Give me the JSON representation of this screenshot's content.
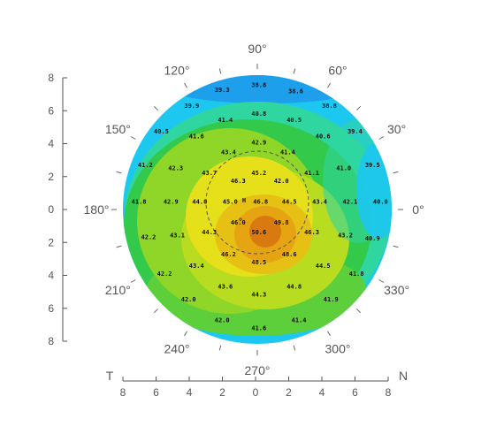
{
  "chart_data": {
    "type": "heatmap",
    "title": "",
    "colorscale": [
      "#1e6ee8",
      "#1cc7f0",
      "#2fd6a0",
      "#33c94a",
      "#8fd628",
      "#e6e01a",
      "#e6a412",
      "#d97a10"
    ],
    "x_range": [
      -8,
      8
    ],
    "y_range": [
      -8,
      8
    ],
    "x_ticks": [
      "8",
      "6",
      "4",
      "2",
      "0",
      "2",
      "4",
      "6",
      "8"
    ],
    "y_ticks": [
      "8",
      "6",
      "4",
      "2",
      "0",
      "2",
      "4",
      "6",
      "8"
    ],
    "side_labels": {
      "left": "T",
      "right": "N"
    },
    "angle_labels": [
      {
        "deg": 90,
        "text": "90°"
      },
      {
        "deg": 60,
        "text": "60°"
      },
      {
        "deg": 30,
        "text": "30°"
      },
      {
        "deg": 0,
        "text": "0°"
      },
      {
        "deg": 330,
        "text": "330°"
      },
      {
        "deg": 300,
        "text": "300°"
      },
      {
        "deg": 270,
        "text": "270°"
      },
      {
        "deg": 240,
        "text": "240°"
      },
      {
        "deg": 210,
        "text": "210°"
      },
      {
        "deg": 180,
        "text": "180°"
      },
      {
        "deg": 150,
        "text": "150°"
      },
      {
        "deg": 120,
        "text": "120°"
      }
    ],
    "points": [
      {
        "x": 0.1,
        "y": 7.8,
        "v": "38.8"
      },
      {
        "x": -2.2,
        "y": 7.5,
        "v": "39.3"
      },
      {
        "x": 2.4,
        "y": 7.4,
        "v": "38.6"
      },
      {
        "x": -4.1,
        "y": 6.5,
        "v": "39.9"
      },
      {
        "x": 4.5,
        "y": 6.5,
        "v": "38.8"
      },
      {
        "x": -2.0,
        "y": 5.6,
        "v": "41.4"
      },
      {
        "x": 0.1,
        "y": 6.0,
        "v": "40.8"
      },
      {
        "x": 2.3,
        "y": 5.6,
        "v": "40.5"
      },
      {
        "x": -6.0,
        "y": 4.9,
        "v": "40.5"
      },
      {
        "x": -3.8,
        "y": 4.6,
        "v": "41.6"
      },
      {
        "x": 4.1,
        "y": 4.6,
        "v": "40.6"
      },
      {
        "x": 6.1,
        "y": 4.9,
        "v": "39.4"
      },
      {
        "x": 0.1,
        "y": 4.2,
        "v": "42.9"
      },
      {
        "x": -1.8,
        "y": 3.6,
        "v": "43.4"
      },
      {
        "x": 1.9,
        "y": 3.6,
        "v": "41.4"
      },
      {
        "x": -7.0,
        "y": 2.8,
        "v": "41.2"
      },
      {
        "x": -5.1,
        "y": 2.6,
        "v": "42.3"
      },
      {
        "x": 7.2,
        "y": 2.8,
        "v": "39.5"
      },
      {
        "x": 5.4,
        "y": 2.6,
        "v": "41.0"
      },
      {
        "x": -3.0,
        "y": 2.3,
        "v": "43.7"
      },
      {
        "x": 0.1,
        "y": 2.3,
        "v": "45.2"
      },
      {
        "x": 3.4,
        "y": 2.3,
        "v": "41.1"
      },
      {
        "x": -1.2,
        "y": 1.8,
        "v": "46.3"
      },
      {
        "x": 1.5,
        "y": 1.8,
        "v": "42.0"
      },
      {
        "x": -7.4,
        "y": 0.5,
        "v": "41.8"
      },
      {
        "x": -5.4,
        "y": 0.5,
        "v": "42.9"
      },
      {
        "x": -3.6,
        "y": 0.5,
        "v": "44.0"
      },
      {
        "x": -1.7,
        "y": 0.5,
        "v": "45.0"
      },
      {
        "x": 0.2,
        "y": 0.5,
        "v": "46.8"
      },
      {
        "x": 2.0,
        "y": 0.5,
        "v": "44.5"
      },
      {
        "x": 3.9,
        "y": 0.5,
        "v": "43.4"
      },
      {
        "x": 5.8,
        "y": 0.5,
        "v": "42.1"
      },
      {
        "x": 7.7,
        "y": 0.5,
        "v": "40.0"
      },
      {
        "x": -1.2,
        "y": -0.8,
        "v": "46.0"
      },
      {
        "x": 1.5,
        "y": -0.8,
        "v": "49.8"
      },
      {
        "x": 0.1,
        "y": -1.4,
        "v": "50.6"
      },
      {
        "x": -3.0,
        "y": -1.4,
        "v": "44.3"
      },
      {
        "x": 3.4,
        "y": -1.4,
        "v": "46.3"
      },
      {
        "x": -6.8,
        "y": -1.7,
        "v": "42.2"
      },
      {
        "x": -5.0,
        "y": -1.6,
        "v": "43.1"
      },
      {
        "x": 5.5,
        "y": -1.6,
        "v": "43.2"
      },
      {
        "x": 7.2,
        "y": -1.8,
        "v": "40.9"
      },
      {
        "x": -1.8,
        "y": -2.8,
        "v": "46.2"
      },
      {
        "x": 2.0,
        "y": -2.8,
        "v": "48.6"
      },
      {
        "x": 0.1,
        "y": -3.3,
        "v": "48.5"
      },
      {
        "x": -3.8,
        "y": -3.5,
        "v": "43.4"
      },
      {
        "x": 4.1,
        "y": -3.5,
        "v": "44.5"
      },
      {
        "x": -5.8,
        "y": -4.0,
        "v": "42.2"
      },
      {
        "x": 6.2,
        "y": -4.0,
        "v": "41.8"
      },
      {
        "x": -2.0,
        "y": -4.8,
        "v": "43.6"
      },
      {
        "x": 2.3,
        "y": -4.8,
        "v": "44.8"
      },
      {
        "x": 0.1,
        "y": -5.3,
        "v": "44.3"
      },
      {
        "x": -4.3,
        "y": -5.6,
        "v": "42.0"
      },
      {
        "x": 4.6,
        "y": -5.6,
        "v": "41.9"
      },
      {
        "x": -2.2,
        "y": -6.9,
        "v": "42.0"
      },
      {
        "x": 2.6,
        "y": -6.9,
        "v": "41.4"
      },
      {
        "x": 0.1,
        "y": -7.4,
        "v": "41.6"
      }
    ],
    "extra_marks": [
      "H",
      "◇"
    ]
  }
}
